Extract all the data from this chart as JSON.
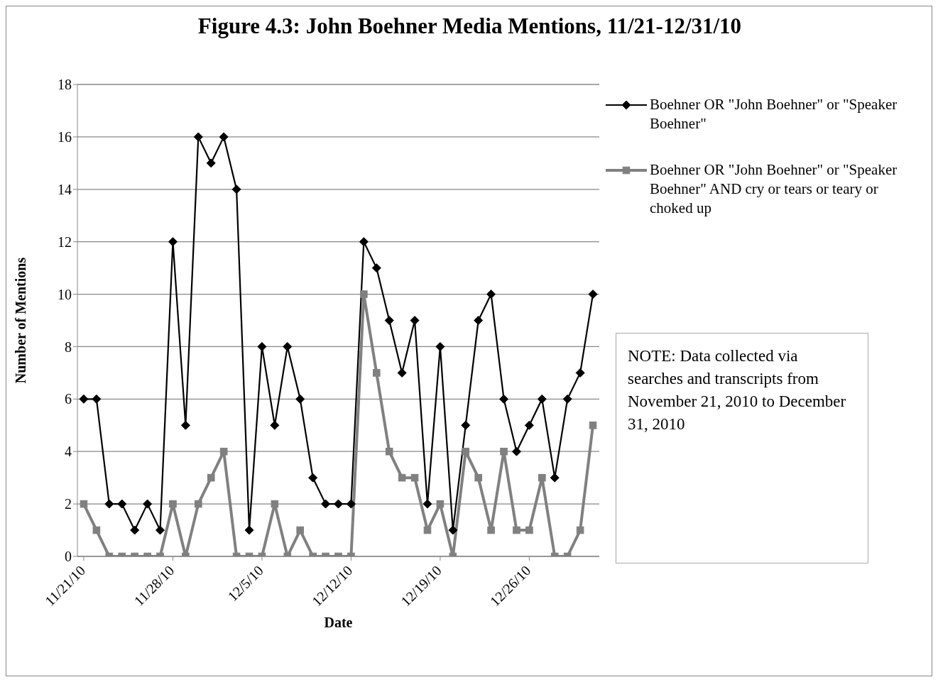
{
  "chart_data": {
    "type": "line",
    "title": "Figure 4.3: John Boehner Media Mentions, 11/21-12/31/10",
    "xlabel": "Date",
    "ylabel": "Number of Mentions",
    "x": [
      "2010-11-21",
      "2010-11-22",
      "2010-11-23",
      "2010-11-24",
      "2010-11-25",
      "2010-11-26",
      "2010-11-27",
      "2010-11-28",
      "2010-11-29",
      "2010-11-30",
      "2010-12-01",
      "2010-12-02",
      "2010-12-03",
      "2010-12-04",
      "2010-12-05",
      "2010-12-06",
      "2010-12-07",
      "2010-12-08",
      "2010-12-09",
      "2010-12-10",
      "2010-12-11",
      "2010-12-12",
      "2010-12-13",
      "2010-12-14",
      "2010-12-15",
      "2010-12-16",
      "2010-12-17",
      "2010-12-18",
      "2010-12-19",
      "2010-12-20",
      "2010-12-21",
      "2010-12-22",
      "2010-12-23",
      "2010-12-24",
      "2010-12-25",
      "2010-12-26",
      "2010-12-27",
      "2010-12-28",
      "2010-12-29",
      "2010-12-30",
      "2010-12-31"
    ],
    "series": [
      {
        "name": "Boehner OR \"John Boehner\" or \"Speaker Boehner\"",
        "color": "#000000",
        "marker": "diamond",
        "values": [
          6,
          6,
          2,
          2,
          1,
          2,
          1,
          12,
          5,
          16,
          15,
          16,
          14,
          1,
          8,
          5,
          8,
          6,
          3,
          2,
          2,
          2,
          12,
          11,
          9,
          7,
          9,
          2,
          8,
          1,
          5,
          9,
          10,
          6,
          4,
          5,
          6,
          3,
          6,
          7,
          10
        ]
      },
      {
        "name": "Boehner OR \"John Boehner\" or \"Speaker Boehner\" AND cry or tears or teary or choked up",
        "color": "#808080",
        "marker": "square",
        "values": [
          2,
          1,
          0,
          0,
          0,
          0,
          0,
          2,
          0,
          2,
          3,
          4,
          0,
          0,
          0,
          2,
          0,
          1,
          0,
          0,
          0,
          0,
          10,
          7,
          4,
          3,
          3,
          1,
          2,
          0,
          4,
          3,
          1,
          4,
          1,
          1,
          3,
          0,
          0,
          1,
          5
        ]
      }
    ],
    "xlim": [
      "2010-11-20T12:00",
      "2010-12-31T12:00"
    ],
    "xticks": [
      {
        "value": "2010-11-21",
        "label": "11/21/10"
      },
      {
        "value": "2010-11-28",
        "label": "11/28/10"
      },
      {
        "value": "2010-12-05",
        "label": "12/5/10"
      },
      {
        "value": "2010-12-12",
        "label": "12/12/10"
      },
      {
        "value": "2010-12-19",
        "label": "12/19/10"
      },
      {
        "value": "2010-12-26",
        "label": "12/26/10"
      }
    ],
    "ylim": [
      0,
      18
    ],
    "yticks": [
      0,
      2,
      4,
      6,
      8,
      10,
      12,
      14,
      16,
      18
    ],
    "grid": "y",
    "legend": "right",
    "line_style": "solid",
    "annotations": [
      "NOTE: Data collected via searches and transcripts from November 21, 2010 to December 31, 2010"
    ]
  }
}
